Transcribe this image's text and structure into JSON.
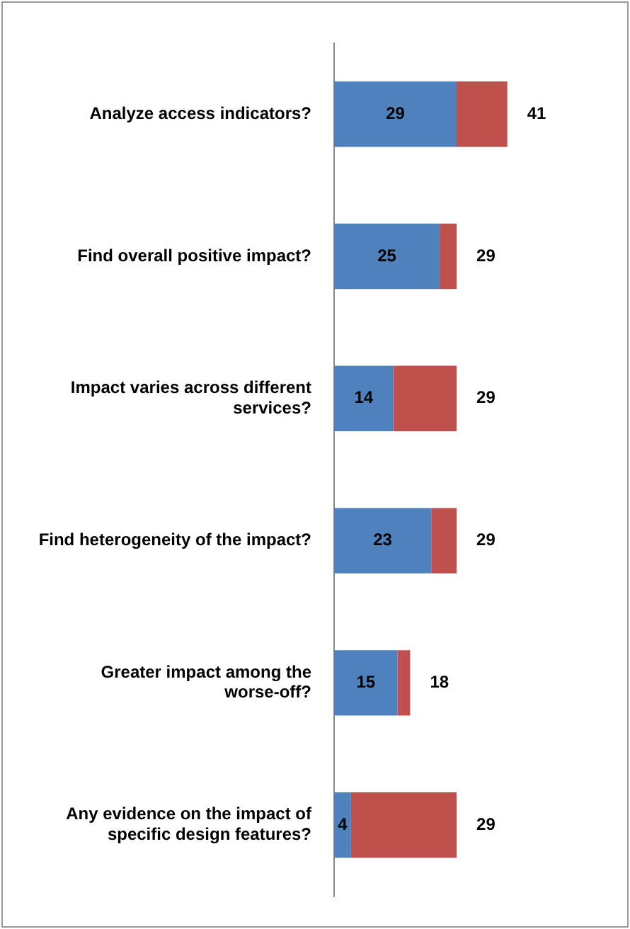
{
  "chart_data": {
    "type": "bar",
    "orientation": "horizontal",
    "stacked": true,
    "categories": [
      "Analyze access indicators?",
      "Find overall positive impact?",
      "Impact varies across different services?",
      "Find heterogeneity of the impact?",
      "Greater impact among the worse-off?",
      "Any evidence on the impact of specific design features?"
    ],
    "series": [
      {
        "color": "#4f81bd",
        "values": [
          29,
          25,
          14,
          23,
          15,
          4
        ],
        "value_labels": [
          "29",
          "25",
          "14",
          "23",
          "15",
          "4"
        ]
      },
      {
        "color": "#c0504d",
        "values": [
          12,
          4,
          15,
          6,
          3,
          25
        ]
      }
    ],
    "totals": [
      "41",
      "29",
      "29",
      "29",
      "18",
      "29"
    ],
    "legend": false,
    "grid": false,
    "tick_labels": "y"
  }
}
